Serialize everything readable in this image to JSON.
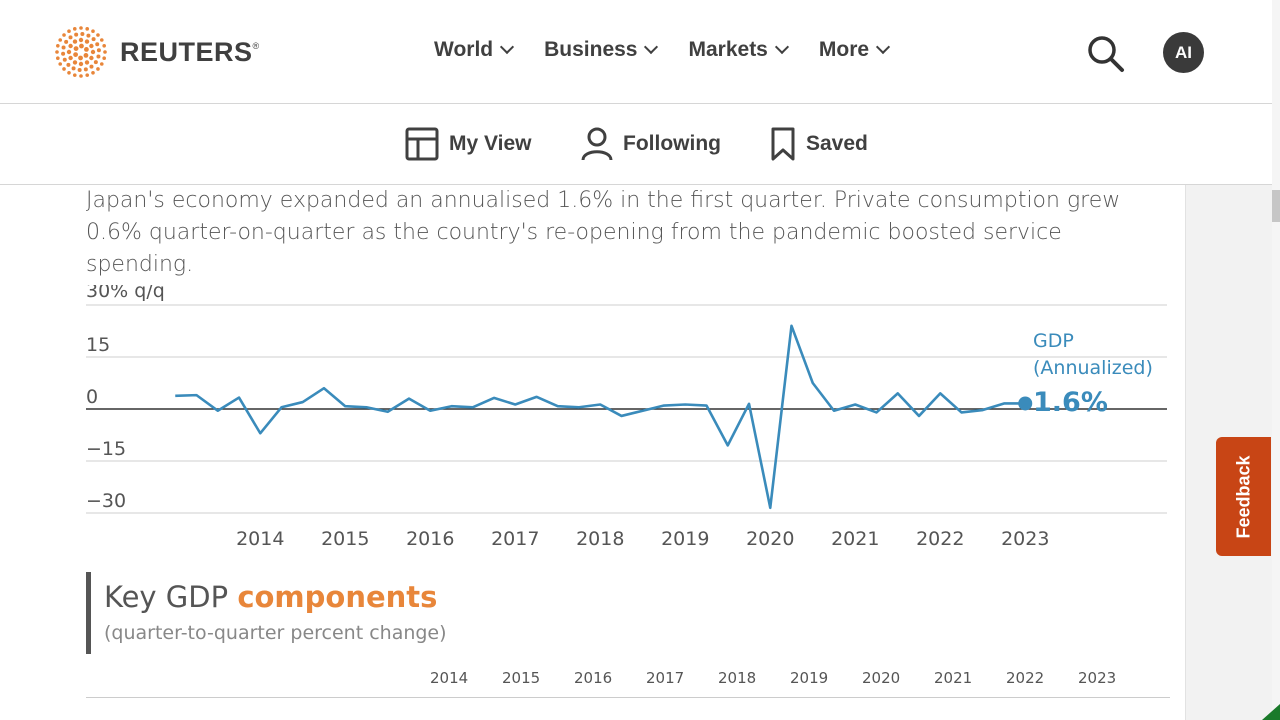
{
  "header": {
    "brand": "REUTERS",
    "brand_mark": "®",
    "nav": [
      {
        "label": "World"
      },
      {
        "label": "Business"
      },
      {
        "label": "Markets"
      },
      {
        "label": "More"
      }
    ],
    "avatar_initials": "AI"
  },
  "subnav": {
    "my_view": "My View",
    "following": "Following",
    "saved": "Saved"
  },
  "article": {
    "intro": "Japan's economy expanded an annualised 1.6% in the first quarter. Private consumption grew 0.6% quarter-on-quarter as the country's re-opening from the pandemic boosted service spending."
  },
  "chart_data": {
    "type": "line",
    "ylabel": "30% q/q",
    "ylim": [
      -30,
      30
    ],
    "y_ticks": [
      "15",
      "0",
      "−15",
      "−30"
    ],
    "x_ticks": [
      "2014",
      "2015",
      "2016",
      "2017",
      "2018",
      "2019",
      "2020",
      "2021",
      "2022",
      "2023"
    ],
    "series": [
      {
        "name": "GDP (Annualized)",
        "color": "#3a8bbb",
        "x": [
          2013.0,
          2013.25,
          2013.5,
          2013.75,
          2014.0,
          2014.25,
          2014.5,
          2014.75,
          2015.0,
          2015.25,
          2015.5,
          2015.75,
          2016.0,
          2016.25,
          2016.5,
          2016.75,
          2017.0,
          2017.25,
          2017.5,
          2017.75,
          2018.0,
          2018.25,
          2018.5,
          2018.75,
          2019.0,
          2019.25,
          2019.5,
          2019.75,
          2020.0,
          2020.25,
          2020.5,
          2020.75,
          2021.0,
          2021.25,
          2021.5,
          2021.75,
          2022.0,
          2022.25,
          2022.5,
          2022.75,
          2023.0
        ],
        "values": [
          3.8,
          4.0,
          -0.5,
          3.3,
          -7.0,
          0.5,
          2.0,
          6.0,
          0.8,
          0.5,
          -0.8,
          3.0,
          -0.5,
          0.8,
          0.5,
          3.2,
          1.3,
          3.5,
          0.8,
          0.5,
          1.3,
          -2.0,
          -0.5,
          1.0,
          1.3,
          1.0,
          -10.5,
          1.5,
          -28.5,
          24.0,
          7.5,
          -0.5,
          1.3,
          -1.0,
          4.5,
          -2.0,
          4.5,
          -1.0,
          -0.3,
          1.6,
          1.6
        ]
      }
    ],
    "series_label_line1": "GDP",
    "series_label_line2": "(Annualized)",
    "latest_value_label": "1.6%",
    "grid": true
  },
  "components": {
    "title_plain": "Key GDP ",
    "title_highlight": "components",
    "subtitle": "(quarter-to-quarter percent change)",
    "years": [
      "2014",
      "2015",
      "2016",
      "2017",
      "2018",
      "2019",
      "2020",
      "2021",
      "2022",
      "2023"
    ]
  },
  "feedback_label": "Feedback",
  "icons": {
    "search": "search-icon",
    "my_view": "layout-icon",
    "following": "person-icon",
    "saved": "bookmark-icon"
  },
  "colors": {
    "accent_orange": "#e8863a",
    "line_blue": "#3a8bbb",
    "feedback_bg": "#c84515"
  }
}
